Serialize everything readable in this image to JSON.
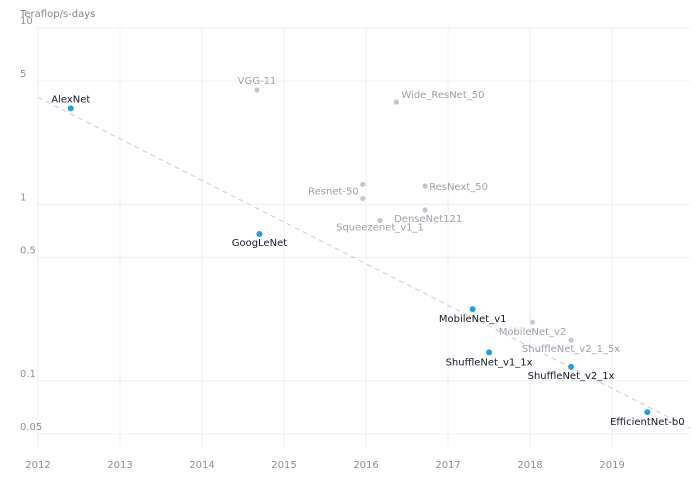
{
  "colors": {
    "highlight": "#1aa3db",
    "muted": "#c3c7cd",
    "grid": "#eef0f2",
    "trend": "#cfd3d8"
  },
  "chart_data": {
    "type": "scatter",
    "title": "",
    "ylabel": "Teraflop/s-days",
    "xlabel": "",
    "yscale": "log",
    "xlim": [
      2012,
      2019.95
    ],
    "ylim": [
      0.045,
      10
    ],
    "x_ticks": [
      "2012",
      "2013",
      "2014",
      "2015",
      "2016",
      "2017",
      "2018",
      "2019"
    ],
    "y_ticks": [
      {
        "value": 10,
        "label": "10"
      },
      {
        "value": 5,
        "label": "5"
      },
      {
        "value": 1,
        "label": "1"
      },
      {
        "value": 0.5,
        "label": "0.5"
      },
      {
        "value": 0.1,
        "label": "0.1"
      },
      {
        "value": 0.05,
        "label": "0.05"
      }
    ],
    "grid": true,
    "trendline": {
      "style": "dashed",
      "from": [
        2012,
        4.05
      ],
      "to": [
        2019.95,
        0.054
      ]
    },
    "points": [
      {
        "name": "AlexNet",
        "x": 2012.4,
        "y": 3.5,
        "highlight": true,
        "label_anchor": "middle",
        "label_dx": 0,
        "label_dy": -6
      },
      {
        "name": "VGG-11",
        "x": 2014.67,
        "y": 4.45,
        "highlight": false,
        "label_anchor": "middle",
        "label_dx": 0,
        "label_dy": -6
      },
      {
        "name": "Wide_ResNet_50",
        "x": 2016.37,
        "y": 3.8,
        "highlight": false,
        "label_anchor": "start",
        "label_dx": 5,
        "label_dy": -4
      },
      {
        "name": "Resnet-50",
        "x": 2015.96,
        "y": 1.3,
        "highlight": false,
        "label_anchor": "end",
        "label_dx": -4,
        "label_dy": 10
      },
      {
        "name": "",
        "x": 2015.96,
        "y": 1.08,
        "highlight": false,
        "label_anchor": "middle",
        "label_dx": 0,
        "label_dy": 0
      },
      {
        "name": "ResNext_50",
        "x": 2016.72,
        "y": 1.27,
        "highlight": false,
        "label_anchor": "start",
        "label_dx": 4,
        "label_dy": 4
      },
      {
        "name": "DenseNet121",
        "x": 2016.72,
        "y": 0.93,
        "highlight": false,
        "label_anchor": "start",
        "label_dx": -31,
        "label_dy": 12
      },
      {
        "name": "Squeezenet_v1_1",
        "x": 2016.17,
        "y": 0.81,
        "highlight": false,
        "label_anchor": "middle",
        "label_dx": 0,
        "label_dy": 10
      },
      {
        "name": "GoogLeNet",
        "x": 2014.7,
        "y": 0.68,
        "highlight": true,
        "label_anchor": "middle",
        "label_dx": 0,
        "label_dy": 12
      },
      {
        "name": "MobileNet_v1",
        "x": 2017.3,
        "y": 0.255,
        "highlight": true,
        "label_anchor": "middle",
        "label_dx": 0,
        "label_dy": 13
      },
      {
        "name": "MobileNet_v2",
        "x": 2018.03,
        "y": 0.215,
        "highlight": false,
        "label_anchor": "middle",
        "label_dx": 0,
        "label_dy": 13
      },
      {
        "name": "ShuffleNet_v2_1_5x",
        "x": 2018.5,
        "y": 0.17,
        "highlight": false,
        "label_anchor": "middle",
        "label_dx": 0,
        "label_dy": 12
      },
      {
        "name": "ShuffleNet_v1_1x",
        "x": 2017.5,
        "y": 0.145,
        "highlight": true,
        "label_anchor": "middle",
        "label_dx": 0,
        "label_dy": 13
      },
      {
        "name": "ShuffleNet_v2_1x",
        "x": 2018.5,
        "y": 0.12,
        "highlight": true,
        "label_anchor": "middle",
        "label_dx": 0,
        "label_dy": 12
      },
      {
        "name": "EfficientNet-b0",
        "x": 2019.43,
        "y": 0.0665,
        "highlight": true,
        "label_anchor": "middle",
        "label_dx": 0,
        "label_dy": 13
      }
    ]
  }
}
